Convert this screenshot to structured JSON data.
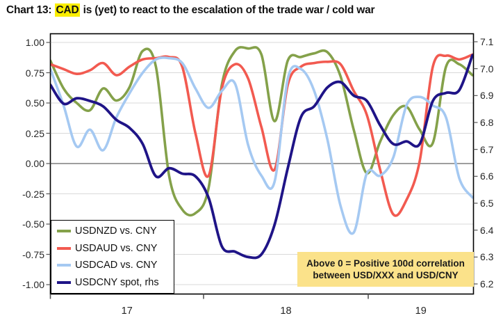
{
  "title": {
    "prefix": "Chart 13: ",
    "highlight": "CAD",
    "suffix": " is (yet) to react to the escalation of the trade war / cold war",
    "highlight_bg": "#faee00"
  },
  "annotation": {
    "line1": "Above 0 = Positive 100d correlation",
    "line2": "between USD/XXX and USD/CNY",
    "bg": "#fbe28a"
  },
  "legend": {
    "items": [
      {
        "label": "USDNZD vs. CNY",
        "color": "#84a14a"
      },
      {
        "label": "USDAUD vs. CNY",
        "color": "#f25a50"
      },
      {
        "label": "USDCAD vs. CNY",
        "color": "#a5c9f2"
      },
      {
        "label": "USDCNY spot, rhs",
        "color": "#1f1487"
      }
    ]
  },
  "axes": {
    "left_ticks": [
      "1.00",
      "0.75",
      "0.50",
      "0.25",
      "0.00",
      "-0.25",
      "-0.50",
      "-0.75",
      "-1.00"
    ],
    "right_ticks": [
      "7.1",
      "7.0",
      "6.9",
      "6.8",
      "6.7",
      "6.6",
      "6.5",
      "6.4",
      "6.3",
      "6.2"
    ],
    "x_ticks": [
      "17",
      "18",
      "19"
    ]
  },
  "chart_data": {
    "type": "line",
    "x": [
      "2017-01",
      "2017-02",
      "2017-03",
      "2017-04",
      "2017-05",
      "2017-06",
      "2017-07",
      "2017-08",
      "2017-09",
      "2017-10",
      "2017-11",
      "2017-12",
      "2018-01",
      "2018-02",
      "2018-03",
      "2018-04",
      "2018-05",
      "2018-06",
      "2018-07",
      "2018-08",
      "2018-09",
      "2018-10",
      "2018-11",
      "2018-12",
      "2019-01",
      "2019-02",
      "2019-03",
      "2019-04",
      "2019-05",
      "2019-06",
      "2019-07",
      "2019-08",
      "2019-09"
    ],
    "left_axis": {
      "label": "100d correlation",
      "range": [
        -1.0,
        1.0
      ],
      "tick_step": 0.25,
      "zero_line": true
    },
    "right_axis": {
      "label": "USDCNY spot",
      "range": [
        6.2,
        7.1
      ],
      "tick_step": 0.1
    },
    "grid": "horizontal-only",
    "legend_position": "bottom-left-inside",
    "series": [
      {
        "name": "USDNZD vs. CNY",
        "axis": "left",
        "color": "#84a14a",
        "values": [
          0.85,
          0.62,
          0.5,
          0.44,
          0.62,
          0.52,
          0.63,
          0.93,
          0.8,
          -0.1,
          -0.38,
          -0.41,
          -0.2,
          0.65,
          0.93,
          0.95,
          0.9,
          0.35,
          0.85,
          0.88,
          0.91,
          0.92,
          0.72,
          0.28,
          -0.08,
          0.18,
          0.4,
          0.47,
          0.28,
          0.17,
          0.8,
          0.82,
          0.73
        ]
      },
      {
        "name": "USDAUD vs. CNY",
        "axis": "left",
        "color": "#f25a50",
        "values": [
          0.82,
          0.78,
          0.74,
          0.77,
          0.83,
          0.73,
          0.8,
          0.86,
          0.87,
          0.88,
          0.8,
          0.25,
          -0.1,
          0.62,
          0.82,
          0.7,
          0.3,
          -0.05,
          0.65,
          0.8,
          0.83,
          0.84,
          0.82,
          0.6,
          0.4,
          -0.05,
          -0.42,
          -0.3,
          0.02,
          0.8,
          0.89,
          0.86,
          0.9
        ]
      },
      {
        "name": "USDCAD vs. CNY",
        "axis": "left",
        "color": "#a5c9f2",
        "values": [
          0.78,
          0.48,
          0.14,
          0.28,
          0.11,
          0.38,
          0.58,
          0.75,
          0.86,
          0.87,
          0.83,
          0.62,
          0.46,
          0.6,
          0.66,
          0.15,
          -0.1,
          -0.15,
          0.7,
          0.78,
          0.6,
          0.2,
          -0.35,
          -0.57,
          -0.08,
          -0.1,
          0.05,
          0.48,
          0.55,
          0.48,
          0.38,
          -0.12,
          -0.28
        ]
      },
      {
        "name": "USDCNY spot, rhs",
        "axis": "right",
        "color": "#1f1487",
        "values": [
          6.94,
          6.87,
          6.89,
          6.88,
          6.86,
          6.81,
          6.78,
          6.72,
          6.6,
          6.63,
          6.61,
          6.6,
          6.52,
          6.34,
          6.32,
          6.3,
          6.31,
          6.42,
          6.63,
          6.82,
          6.86,
          6.93,
          6.95,
          6.9,
          6.88,
          6.79,
          6.72,
          6.73,
          6.72,
          6.88,
          6.91,
          6.92,
          7.05
        ]
      }
    ],
    "colors": {
      "grid": "#d9d9d9",
      "zero_line": "#7f7f7f",
      "frame": "#000000",
      "text": "#1a1a1a"
    }
  }
}
